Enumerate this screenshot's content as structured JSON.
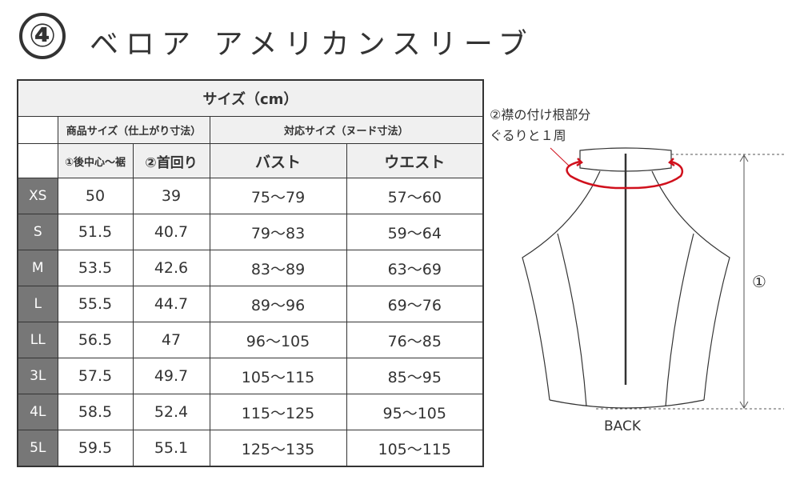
{
  "title": {
    "number": "④",
    "text": "ベロア アメリカンスリーブ"
  },
  "table": {
    "header": "サイズ（cm）",
    "group_product": "商品サイズ（仕上がり寸法）",
    "group_body": "対応サイズ（ヌード寸法）",
    "columns": [
      "①後中心〜裾",
      "②首回り",
      "バスト",
      "ウエスト"
    ],
    "rows": [
      {
        "size": "XS",
        "length": "50",
        "neck": "39",
        "bust": "75〜79",
        "waist": "57〜60"
      },
      {
        "size": "S",
        "length": "51.5",
        "neck": "40.7",
        "bust": "79〜83",
        "waist": "59〜64"
      },
      {
        "size": "M",
        "length": "53.5",
        "neck": "42.6",
        "bust": "83〜89",
        "waist": "63〜69"
      },
      {
        "size": "L",
        "length": "55.5",
        "neck": "44.7",
        "bust": "89〜96",
        "waist": "69〜76"
      },
      {
        "size": "LL",
        "length": "56.5",
        "neck": "47",
        "bust": "96〜105",
        "waist": "76〜85"
      },
      {
        "size": "3L",
        "length": "57.5",
        "neck": "49.7",
        "bust": "105〜115",
        "waist": "85〜95"
      },
      {
        "size": "4L",
        "length": "58.5",
        "neck": "52.4",
        "bust": "115〜125",
        "waist": "95〜105"
      },
      {
        "size": "5L",
        "length": "59.5",
        "neck": "55.1",
        "bust": "125〜135",
        "waist": "105〜115"
      }
    ]
  },
  "diagram": {
    "note_line1": "②襟の付け根部分",
    "note_line2": "ぐるりと１周",
    "length_marker": "①",
    "view_label": "BACK",
    "accent_color": "#d0101c"
  }
}
